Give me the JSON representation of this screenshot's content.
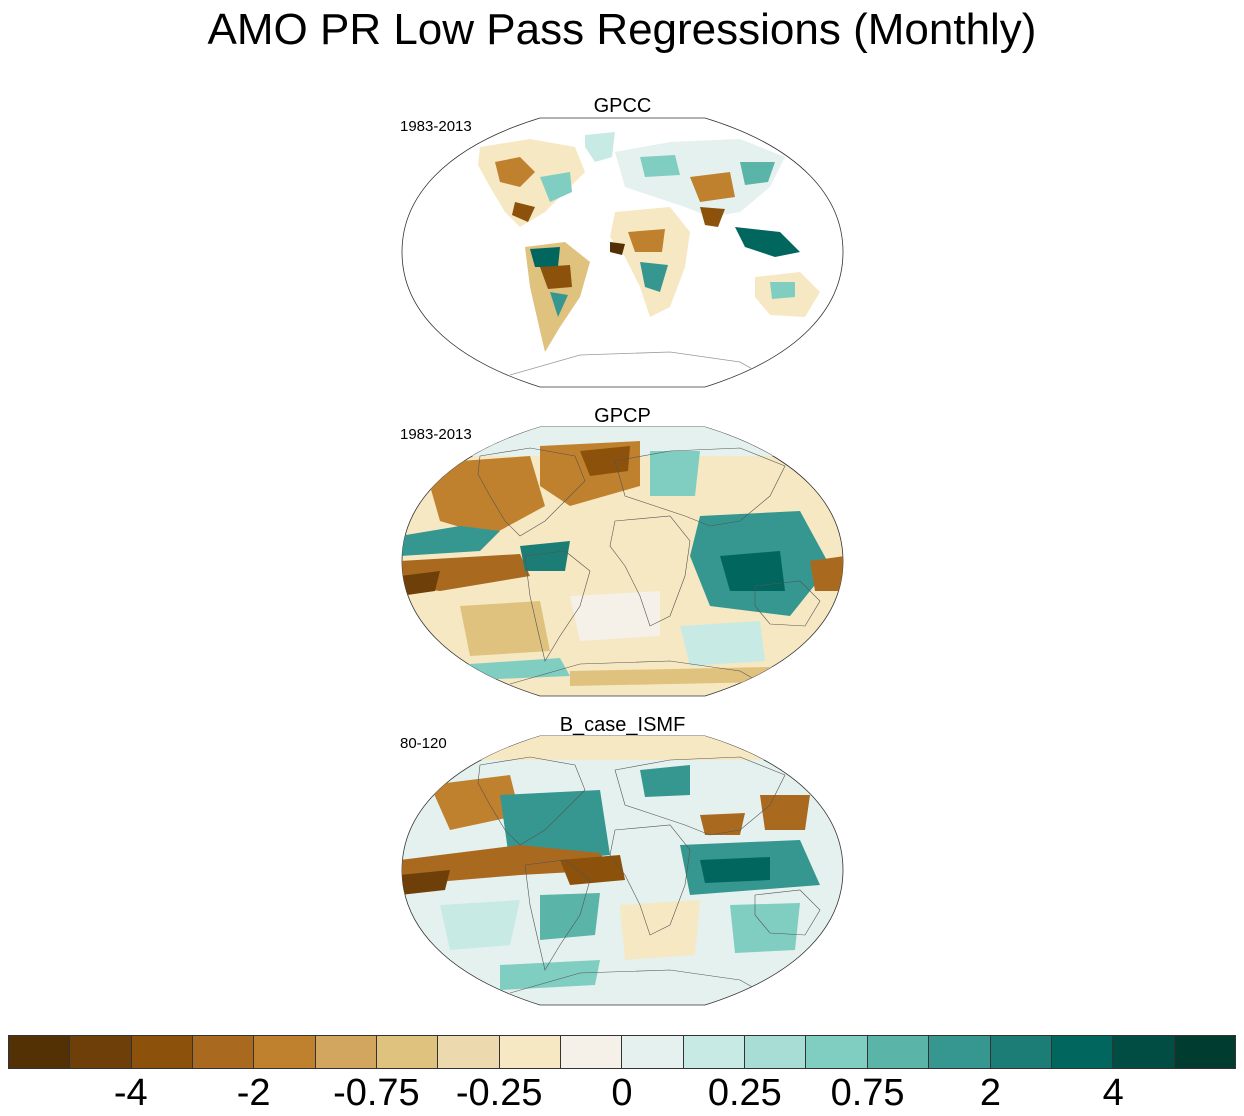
{
  "title": "AMO PR Low Pass Regressions (Monthly)",
  "panels": [
    {
      "name": "GPCC",
      "period": "1983-2013",
      "coverage": "land-only"
    },
    {
      "name": "GPCP",
      "period": "1983-2013",
      "coverage": "global"
    },
    {
      "name": "B_case_ISMF",
      "period": "80-120",
      "coverage": "global"
    }
  ],
  "colorbar": {
    "colors": [
      "#543005",
      "#6f3f0a",
      "#8c510a",
      "#a96a20",
      "#bf812d",
      "#d2a65f",
      "#dfc27d",
      "#ecd9ad",
      "#f6e8c3",
      "#f5f0e8",
      "#e4f1ee",
      "#c7eae5",
      "#a8ddd5",
      "#80cdc1",
      "#5ab4a8",
      "#35978f",
      "#1b7d75",
      "#01665e",
      "#014d44",
      "#003c30"
    ],
    "tick_labels": [
      "-4",
      "-2",
      "-0.75",
      "-0.25",
      "0",
      "0.25",
      "0.75",
      "2",
      "4"
    ]
  }
}
